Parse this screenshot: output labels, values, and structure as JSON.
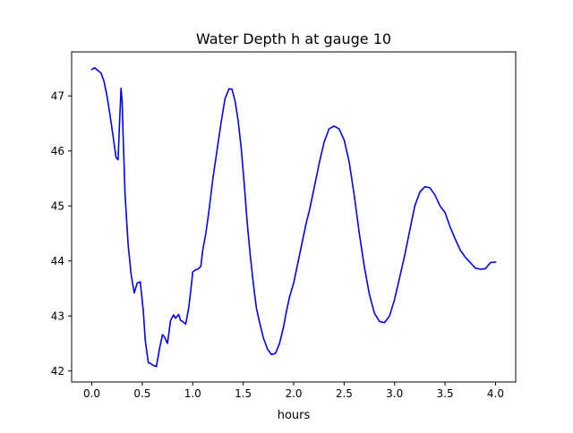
{
  "chart_data": {
    "type": "line",
    "title": "Water Depth h at gauge 10",
    "xlabel": "hours",
    "ylabel": "",
    "xlim": [
      -0.2,
      4.2
    ],
    "ylim": [
      41.8,
      47.8
    ],
    "xticks": [
      0.0,
      0.5,
      1.0,
      1.5,
      2.0,
      2.5,
      3.0,
      3.5,
      4.0
    ],
    "xtick_labels": [
      "0.0",
      "0.5",
      "1.0",
      "1.5",
      "2.0",
      "2.5",
      "3.0",
      "3.5",
      "4.0"
    ],
    "yticks": [
      42,
      43,
      44,
      45,
      46,
      47
    ],
    "ytick_labels": [
      "42",
      "43",
      "44",
      "45",
      "46",
      "47"
    ],
    "grid": false,
    "series": [
      {
        "color": "#0000ff",
        "x": [
          0.0,
          0.03,
          0.06,
          0.09,
          0.12,
          0.15,
          0.18,
          0.21,
          0.24,
          0.26,
          0.275,
          0.29,
          0.3,
          0.31,
          0.33,
          0.36,
          0.39,
          0.42,
          0.45,
          0.48,
          0.51,
          0.53,
          0.56,
          0.58,
          0.61,
          0.64,
          0.67,
          0.7,
          0.72,
          0.75,
          0.78,
          0.81,
          0.83,
          0.86,
          0.88,
          0.9,
          0.93,
          0.96,
          0.98,
          1.0,
          1.03,
          1.05,
          1.08,
          1.1,
          1.13,
          1.16,
          1.2,
          1.24,
          1.28,
          1.32,
          1.36,
          1.39,
          1.42,
          1.45,
          1.48,
          1.51,
          1.54,
          1.57,
          1.6,
          1.63,
          1.66,
          1.7,
          1.74,
          1.78,
          1.82,
          1.86,
          1.9,
          1.93,
          1.96,
          2.0,
          2.04,
          2.08,
          2.12,
          2.16,
          2.2,
          2.25,
          2.3,
          2.35,
          2.4,
          2.45,
          2.5,
          2.55,
          2.6,
          2.65,
          2.7,
          2.75,
          2.8,
          2.85,
          2.9,
          2.95,
          3.0,
          3.05,
          3.1,
          3.15,
          3.2,
          3.25,
          3.3,
          3.35,
          3.4,
          3.45,
          3.5,
          3.55,
          3.6,
          3.65,
          3.7,
          3.75,
          3.8,
          3.85,
          3.9,
          3.95,
          4.0
        ],
        "y": [
          47.48,
          47.51,
          47.46,
          47.42,
          47.27,
          47.0,
          46.66,
          46.28,
          45.88,
          45.84,
          46.5,
          47.14,
          46.9,
          46.3,
          45.2,
          44.3,
          43.75,
          43.42,
          43.6,
          43.62,
          43.1,
          42.55,
          42.15,
          42.14,
          42.1,
          42.08,
          42.4,
          42.66,
          42.62,
          42.5,
          42.92,
          43.02,
          42.96,
          43.03,
          42.92,
          42.9,
          42.85,
          43.15,
          43.45,
          43.8,
          43.84,
          43.85,
          43.9,
          44.2,
          44.5,
          44.9,
          45.5,
          46.0,
          46.5,
          46.95,
          47.13,
          47.12,
          46.9,
          46.55,
          46.05,
          45.4,
          44.7,
          44.1,
          43.6,
          43.15,
          42.9,
          42.6,
          42.4,
          42.3,
          42.32,
          42.5,
          42.8,
          43.1,
          43.35,
          43.6,
          43.95,
          44.3,
          44.65,
          44.95,
          45.3,
          45.75,
          46.15,
          46.4,
          46.45,
          46.4,
          46.2,
          45.8,
          45.2,
          44.5,
          43.9,
          43.4,
          43.05,
          42.9,
          42.88,
          43.0,
          43.3,
          43.7,
          44.1,
          44.55,
          45.0,
          45.25,
          45.35,
          45.33,
          45.2,
          45.0,
          44.88,
          44.62,
          44.4,
          44.2,
          44.07,
          43.97,
          43.87,
          43.85,
          43.86,
          43.97,
          43.98
        ]
      }
    ]
  }
}
